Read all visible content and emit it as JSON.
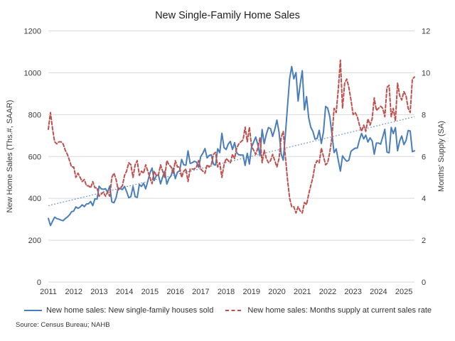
{
  "chart": {
    "title": "New Single-Family Home Sales",
    "source": "Source: Census Bureau; NAHB",
    "left_axis": {
      "title": "New Home Sales (Ths.#, SAAR)",
      "min": 0,
      "max": 1200,
      "step": 200,
      "tick_labels": [
        "0",
        "200",
        "400",
        "600",
        "800",
        "1000",
        "1200"
      ]
    },
    "right_axis": {
      "title": "Months' Supply (SA)",
      "min": 0,
      "max": 12,
      "step": 2,
      "tick_labels": [
        "0",
        "2",
        "4",
        "6",
        "8",
        "10",
        "12"
      ]
    },
    "x_axis": {
      "labels": [
        "2011",
        "2012",
        "2013",
        "2014",
        "2015",
        "2016",
        "2017",
        "2018",
        "2019",
        "2020",
        "2021",
        "2022",
        "2023",
        "2024",
        "2025"
      ]
    },
    "legend": [
      {
        "label": "New home sales: New single-family houses sold",
        "color": "#4A7EBB",
        "style": "solid"
      },
      {
        "label": "New home sales: Months supply at current sales rate",
        "color": "#C0504D",
        "style": "dashed"
      }
    ],
    "colors": {
      "grid": "#D9D9D9",
      "sales_line": "#4A7EBB",
      "supply_line": "#C0504D",
      "trend_line": "#7090C0",
      "text": "#3B3B3B"
    }
  },
  "chart_data": {
    "type": "line",
    "title": "New Single-Family Home Sales",
    "frequency": "monthly",
    "x_start": "2011-01",
    "x_end": "2025-06",
    "x_tick_labels": [
      "2011",
      "2012",
      "2013",
      "2014",
      "2015",
      "2016",
      "2017",
      "2018",
      "2019",
      "2020",
      "2021",
      "2022",
      "2023",
      "2024",
      "2025"
    ],
    "ylabel_left": "New Home Sales (Ths.#, SAAR)",
    "ylabel_right": "Months' Supply (SA)",
    "ylim_left": [
      0,
      1200
    ],
    "ylim_right": [
      0,
      12
    ],
    "grid": true,
    "legend_position": "bottom",
    "series": [
      {
        "name": "New home sales: New single-family houses sold",
        "axis": "left",
        "color": "#4A7EBB",
        "line_style": "solid",
        "values": [
          304,
          270,
          291,
          310,
          303,
          300,
          296,
          293,
          303,
          311,
          321,
          336,
          339,
          359,
          352,
          358,
          369,
          360,
          373,
          374,
          385,
          365,
          398,
          396,
          458,
          445,
          443,
          446,
          429,
          459,
          383,
          379,
          403,
          450,
          446,
          442,
          457,
          432,
          403,
          408,
          457,
          408,
          404,
          466,
          457,
          472,
          445,
          482,
          521,
          545,
          485,
          508,
          513,
          469,
          502,
          529,
          468,
          495,
          508,
          544,
          494,
          525,
          531,
          586,
          560,
          558,
          627,
          567,
          570,
          577,
          573,
          548,
          599,
          615,
          638,
          593,
          605,
          608,
          563,
          559,
          637,
          618,
          711,
          643,
          633,
          659,
          672,
          633,
          666,
          618,
          608,
          607,
          607,
          557,
          615,
          564,
          644,
          669,
          693,
          656,
          604,
          729,
          661,
          706,
          738,
          733,
          696,
          729,
          774,
          716,
          612,
          582,
          704,
          839,
          972,
          1030,
          971,
          1001,
          865,
          943,
          1010,
          823,
          886,
          785,
          740,
          720,
          683,
          686,
          725,
          662,
          717,
          839,
          831,
          790,
          707,
          619,
          636,
          582,
          530,
          603,
          588,
          577,
          582,
          625,
          633,
          640,
          640,
          679,
          710,
          684,
          702,
          669,
          689,
          674,
          611,
          664,
          664,
          659,
          693,
          730,
          621,
          617,
          739,
          709,
          738,
          627,
          674,
          698,
          657,
          676,
          724,
          722,
          623,
          627
        ]
      },
      {
        "name": "New home sales: Months supply at current sales rate",
        "axis": "right",
        "color": "#C0504D",
        "line_style": "dashed",
        "values": [
          7.3,
          8.1,
          7.3,
          6.7,
          6.6,
          6.7,
          6.7,
          6.6,
          6.3,
          6.1,
          5.8,
          5.5,
          5.5,
          5.0,
          5.2,
          5.0,
          4.8,
          4.9,
          4.6,
          4.6,
          4.5,
          4.8,
          4.5,
          4.5,
          4.1,
          4.2,
          4.3,
          4.1,
          4.3,
          4.1,
          5.0,
          5.2,
          4.9,
          4.4,
          4.5,
          4.6,
          5.1,
          5.3,
          5.7,
          5.6,
          5.0,
          5.6,
          5.8,
          5.1,
          5.3,
          5.2,
          5.6,
          5.3,
          5.0,
          4.7,
          5.3,
          5.1,
          5.1,
          5.6,
          5.3,
          5.0,
          5.8,
          5.6,
          5.5,
          5.2,
          5.8,
          5.5,
          5.5,
          5.0,
          5.3,
          5.4,
          4.8,
          5.4,
          5.4,
          5.4,
          5.5,
          5.8,
          5.4,
          5.3,
          5.2,
          5.6,
          5.5,
          5.6,
          6.1,
          6.2,
          5.5,
          5.7,
          5.0,
          5.6,
          5.9,
          5.8,
          5.7,
          6.1,
          5.9,
          6.4,
          6.6,
          6.7,
          6.8,
          7.4,
          6.7,
          7.4,
          6.5,
          6.3,
          6.1,
          6.4,
          6.9,
          5.7,
          6.3,
          5.9,
          5.7,
          5.8,
          6.1,
          5.8,
          5.5,
          5.9,
          6.9,
          7.2,
          6.0,
          4.9,
          4.0,
          3.6,
          3.6,
          3.3,
          3.6,
          3.4,
          3.3,
          3.8,
          3.7,
          4.2,
          4.6,
          5.0,
          5.6,
          5.8,
          5.7,
          6.4,
          6.0,
          5.6,
          5.7,
          6.2,
          6.9,
          8.3,
          8.1,
          9.2,
          10.6,
          8.3,
          9.5,
          9.7,
          9.3,
          8.7,
          8.0,
          8.1,
          7.9,
          7.5,
          7.2,
          7.5,
          7.2,
          7.8,
          7.5,
          7.8,
          8.8,
          8.2,
          8.3,
          8.4,
          8.3,
          7.9,
          9.3,
          9.4,
          7.9,
          8.3,
          7.7,
          9.5,
          8.9,
          8.7,
          9.1,
          8.9,
          8.3,
          8.1,
          9.7,
          9.8
        ]
      }
    ],
    "trend": {
      "name": "Linear trend of new home sales",
      "axis": "left",
      "color": "#7090C0",
      "line_style": "dotted",
      "start_value": 365,
      "end_value": 790
    }
  }
}
